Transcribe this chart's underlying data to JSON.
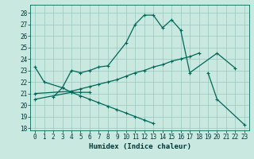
{
  "xlabel": "Humidex (Indice chaleur)",
  "bg_color": "#c8e8e0",
  "grid_color": "#98c8c0",
  "line_color": "#006858",
  "xlim": [
    -0.5,
    23.5
  ],
  "ylim": [
    17.8,
    28.7
  ],
  "yticks": [
    18,
    19,
    20,
    21,
    22,
    23,
    24,
    25,
    26,
    27,
    28
  ],
  "xticks": [
    0,
    1,
    2,
    3,
    4,
    5,
    6,
    7,
    8,
    9,
    10,
    11,
    12,
    13,
    14,
    15,
    16,
    17,
    18,
    19,
    20,
    21,
    22,
    23
  ],
  "curve1_x": [
    0,
    1,
    3,
    4,
    5,
    6,
    7,
    8,
    10,
    11,
    12,
    13,
    14,
    15,
    16,
    17,
    20,
    22
  ],
  "curve1_y": [
    23.3,
    22.0,
    21.5,
    23.0,
    22.8,
    23.0,
    23.3,
    23.4,
    25.4,
    27.0,
    27.8,
    27.8,
    26.7,
    27.4,
    26.5,
    22.8,
    24.5,
    23.2
  ],
  "curve2_x": [
    2,
    3,
    4,
    5,
    6
  ],
  "curve2_y": [
    20.7,
    21.5,
    21.1,
    21.1,
    21.1
  ],
  "curve3_x": [
    0,
    4,
    5,
    6,
    7,
    8,
    9,
    10,
    11,
    12,
    13,
    14,
    15,
    16,
    17,
    18
  ],
  "curve3_y": [
    21.0,
    21.2,
    21.4,
    21.6,
    21.8,
    22.0,
    22.2,
    22.5,
    22.8,
    23.0,
    23.3,
    23.5,
    23.8,
    24.0,
    24.2,
    24.5
  ],
  "curve4_x": [
    0,
    4,
    5,
    6,
    7,
    8,
    9,
    10,
    11,
    12,
    13
  ],
  "curve4_y": [
    20.5,
    21.1,
    20.8,
    20.5,
    20.2,
    19.9,
    19.6,
    19.3,
    19.0,
    18.7,
    18.4
  ],
  "curve5_x": [
    19,
    20,
    23
  ],
  "curve5_y": [
    22.8,
    20.5,
    18.3
  ],
  "tick_fontsize": 5.5,
  "xlabel_fontsize": 6.5
}
